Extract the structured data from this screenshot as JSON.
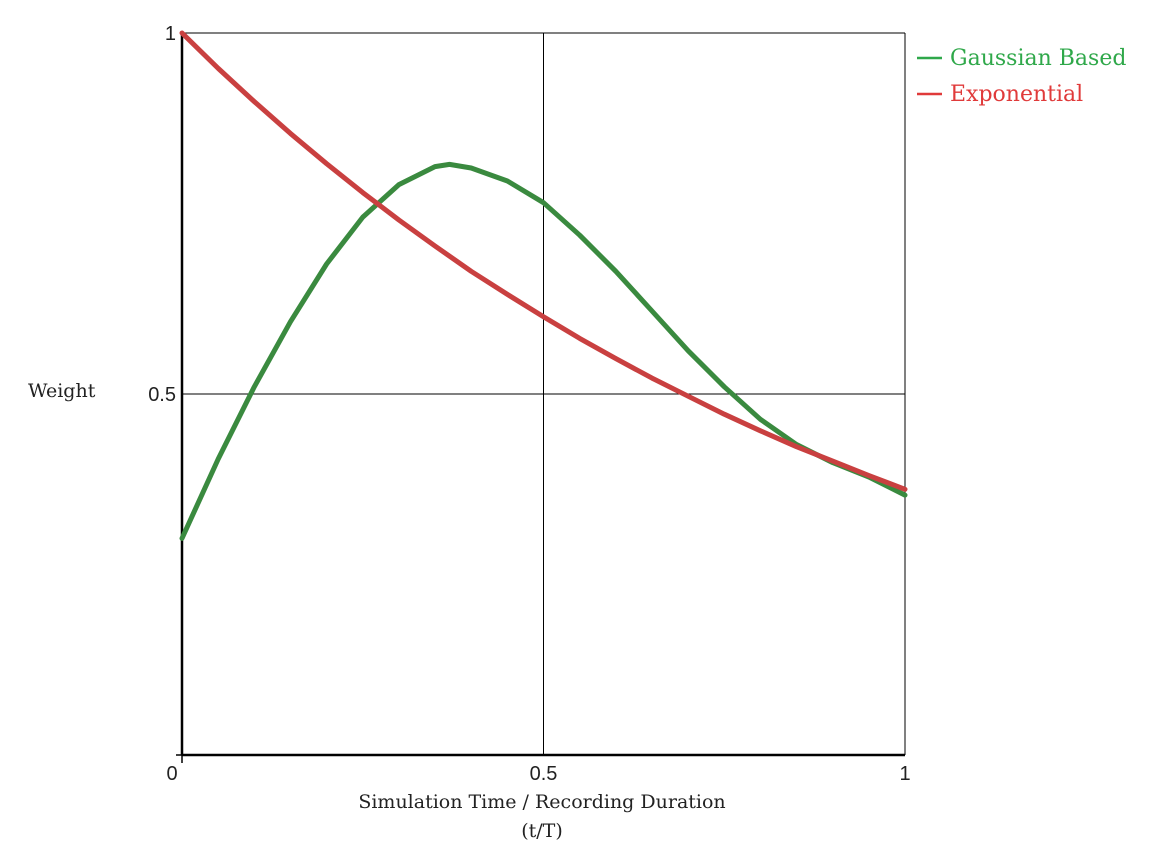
{
  "chart_data": {
    "type": "line",
    "xlabel": "Simulation Time / Recording Duration",
    "xlabel_sub": "(t/T)",
    "ylabel": "Weight",
    "xlim": [
      0,
      1
    ],
    "ylim": [
      0,
      1
    ],
    "x_ticks": [
      0,
      0.5,
      1
    ],
    "x_tick_labels": [
      "0",
      "0.5",
      "1"
    ],
    "y_ticks": [
      0.5,
      1
    ],
    "y_tick_labels": [
      "0.5",
      "1"
    ],
    "grid": true,
    "legend_position": "top-right",
    "series": [
      {
        "name": "Gaussian Based",
        "color": "#3a8a3f",
        "legend_color": "#2fa84a",
        "x": [
          0,
          0.05,
          0.1,
          0.15,
          0.2,
          0.25,
          0.3,
          0.35,
          0.37,
          0.4,
          0.45,
          0.5,
          0.55,
          0.6,
          0.65,
          0.7,
          0.75,
          0.8,
          0.85,
          0.9,
          0.95,
          1
        ],
        "y": [
          0.3,
          0.41,
          0.51,
          0.6,
          0.68,
          0.745,
          0.79,
          0.815,
          0.818,
          0.813,
          0.795,
          0.765,
          0.72,
          0.67,
          0.615,
          0.56,
          0.51,
          0.465,
          0.43,
          0.405,
          0.385,
          0.36
        ]
      },
      {
        "name": "Exponential",
        "color": "#c94040",
        "legend_color": "#e03a3a",
        "x": [
          0,
          0.05,
          0.1,
          0.15,
          0.2,
          0.25,
          0.3,
          0.35,
          0.4,
          0.45,
          0.5,
          0.55,
          0.6,
          0.65,
          0.7,
          0.75,
          0.8,
          0.85,
          0.9,
          0.95,
          1
        ],
        "y": [
          1.0,
          0.951,
          0.905,
          0.861,
          0.819,
          0.779,
          0.741,
          0.705,
          0.67,
          0.638,
          0.607,
          0.577,
          0.549,
          0.522,
          0.497,
          0.472,
          0.449,
          0.427,
          0.407,
          0.387,
          0.368
        ]
      }
    ]
  }
}
